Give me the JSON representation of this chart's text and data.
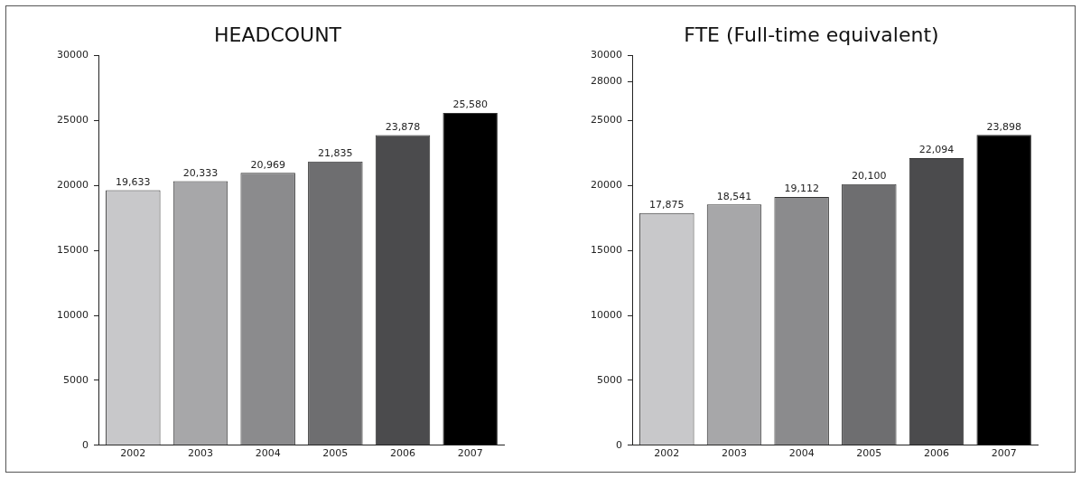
{
  "chart_data": [
    {
      "type": "bar",
      "title": "HEADCOUNT",
      "categories": [
        "2002",
        "2003",
        "2004",
        "2005",
        "2006",
        "2007"
      ],
      "values": [
        19633,
        20333,
        20969,
        21835,
        23878,
        25580
      ],
      "colors": [
        "#c8c8ca",
        "#a7a7a9",
        "#8b8b8d",
        "#6e6e70",
        "#4b4b4d",
        "#000000"
      ],
      "value_labels": [
        "19,633",
        "20,333",
        "20,969",
        "21,835",
        "23,878",
        "25,580"
      ],
      "ylim": [
        0,
        30000
      ],
      "yticks": [
        0,
        5000,
        10000,
        15000,
        20000,
        25000,
        30000
      ],
      "grid": false,
      "legend": false
    },
    {
      "type": "bar",
      "title": "FTE (Full-time equivalent)",
      "categories": [
        "2002",
        "2003",
        "2004",
        "2005",
        "2006",
        "2007"
      ],
      "values": [
        17875,
        18541,
        19112,
        20100,
        22094,
        23898
      ],
      "colors": [
        "#c8c8ca",
        "#a7a7a9",
        "#8b8b8d",
        "#6e6e70",
        "#4b4b4d",
        "#000000"
      ],
      "value_labels": [
        "17,875",
        "18,541",
        "19,112",
        "20,100",
        "22,094",
        "23,898"
      ],
      "ylim": [
        0,
        30000
      ],
      "yticks": [
        0,
        5000,
        10000,
        15000,
        20000,
        25000,
        28000,
        30000
      ],
      "grid": false,
      "legend": false
    }
  ]
}
